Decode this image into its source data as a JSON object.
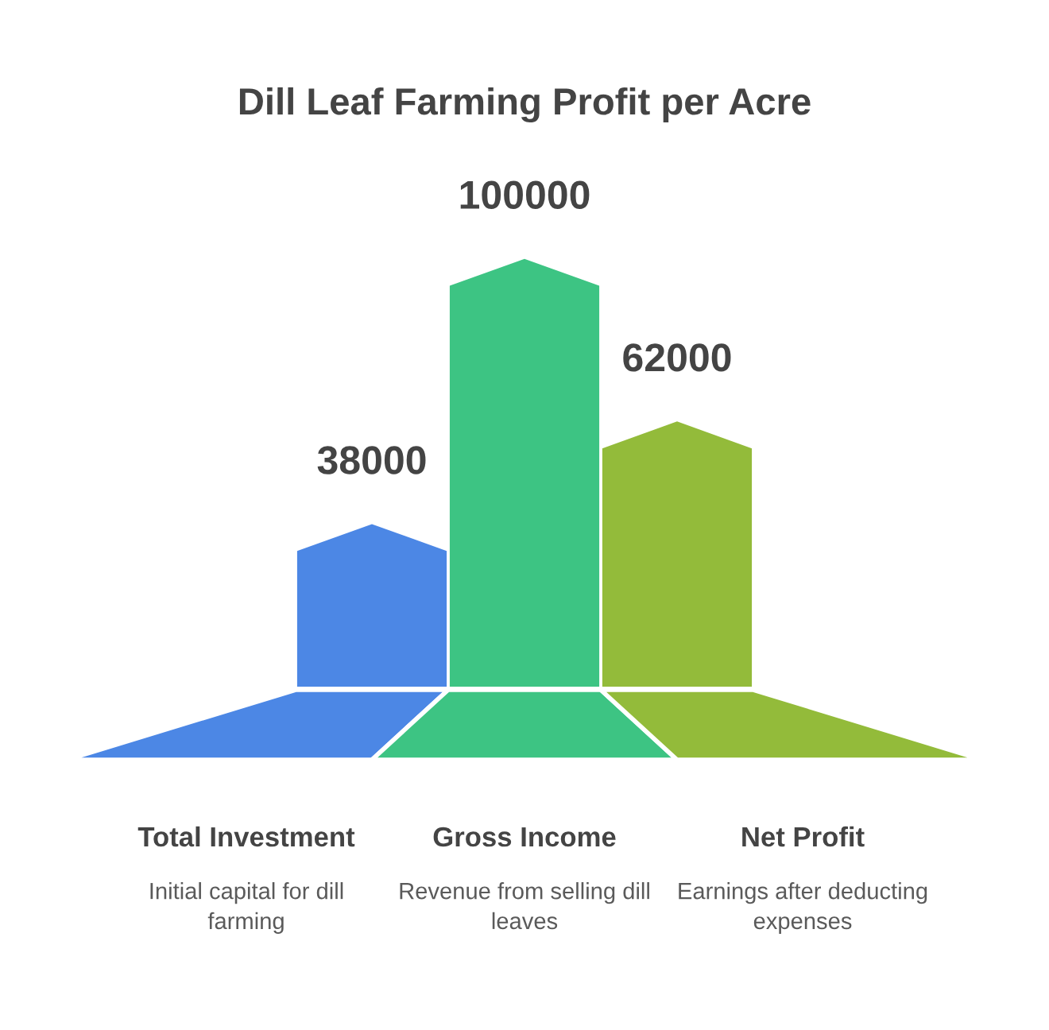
{
  "chart_data": {
    "type": "bar",
    "title": "Dill Leaf Farming Profit per Acre",
    "categories": [
      "Total Investment",
      "Gross Income",
      "Net Profit"
    ],
    "values": [
      38000,
      100000,
      62000
    ],
    "colors": [
      "#4c87e5",
      "#3dc483",
      "#93bb3a"
    ],
    "data_labels": true,
    "annotations": [
      "Initial capital for dill farming",
      "Revenue from selling dill leaves",
      "Earnings after deducting expenses"
    ]
  }
}
